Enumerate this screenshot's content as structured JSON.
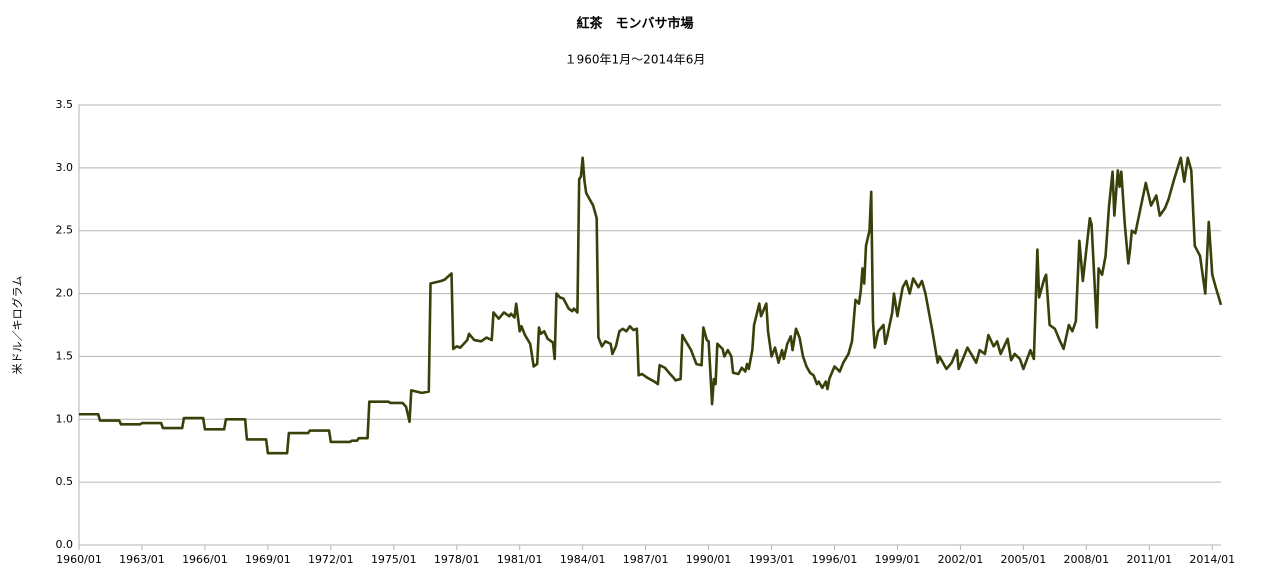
{
  "chart_data": {
    "type": "line",
    "title": "紅茶　モンバサ市場",
    "subtitle": "１960年1月～2014年6月",
    "ylabel": "米ドル／キログラム",
    "color": "#3b400b",
    "grid": true,
    "xlim": [
      "1960/01",
      "2014/06"
    ],
    "xticks": [
      "1960/01",
      "1963/01",
      "1966/01",
      "1969/01",
      "1972/01",
      "1975/01",
      "1978/01",
      "1981/01",
      "1984/01",
      "1987/01",
      "1990/01",
      "1993/01",
      "1996/01",
      "1999/01",
      "2002/01",
      "2005/01",
      "2008/01",
      "2011/01",
      "2014/01"
    ],
    "ylim": [
      0,
      3.5
    ],
    "yticks": [
      {
        "value": 0,
        "label": "0.0"
      },
      0.5,
      {
        "value": 1,
        "label": "1.0"
      },
      1.5,
      {
        "value": 2,
        "label": "2.0"
      },
      2.5,
      {
        "value": 3,
        "label": "3.0"
      },
      3.5
    ],
    "x": [
      "1960/01",
      "1960/12",
      "1961/01",
      "1961/12",
      "1962/01",
      "1962/12",
      "1963/01",
      "1963/12",
      "1964/01",
      "1964/12",
      "1965/01",
      "1965/12",
      "1966/01",
      "1966/12",
      "1967/01",
      "1967/12",
      "1968/01",
      "1968/12",
      "1969/01",
      "1969/12",
      "1970/01",
      "1970/12",
      "1971/01",
      "1971/12",
      "1972/01",
      "1972/12",
      "1973/01",
      "1973/04",
      "1973/05",
      "1973/10",
      "1973/11",
      "1974/10",
      "1974/11",
      "1975/06",
      "1975/08",
      "1975/10",
      "1975/11",
      "1976/05",
      "1976/09",
      "1976/10",
      "1977/04",
      "1977/06",
      "1977/10",
      "1977/11",
      "1978/01",
      "1978/03",
      "1978/07",
      "1978/08",
      "1978/11",
      "1979/03",
      "1979/06",
      "1979/09",
      "1979/10",
      "1980/01",
      "1980/04",
      "1980/07",
      "1980/08",
      "1980/10",
      "1980/11",
      "1981/01",
      "1981/02",
      "1981/04",
      "1981/07",
      "1981/09",
      "1981/11",
      "1981/12",
      "1982/01",
      "1982/03",
      "1982/05",
      "1982/08",
      "1982/09",
      "1982/10",
      "1982/12",
      "1983/02",
      "1983/05",
      "1983/07",
      "1983/08",
      "1983/10",
      "1983/11",
      "1983/12",
      "1984/01",
      "1984/02",
      "1984/03",
      "1984/05",
      "1984/07",
      "1984/09",
      "1984/10",
      "1984/12",
      "1985/02",
      "1985/05",
      "1985/06",
      "1985/08",
      "1985/10",
      "1985/12",
      "1986/02",
      "1986/04",
      "1986/06",
      "1986/08",
      "1986/09",
      "1986/11",
      "1987/02",
      "1987/06",
      "1987/08",
      "1987/09",
      "1987/12",
      "1988/03",
      "1988/05",
      "1988/06",
      "1988/09",
      "1988/10",
      "1988/12",
      "1989/03",
      "1989/06",
      "1989/09",
      "1989/10",
      "1989/12",
      "1990/01",
      "1990/02",
      "1990/03",
      "1990/04",
      "1990/05",
      "1990/06",
      "1990/09",
      "1990/10",
      "1990/12",
      "1991/02",
      "1991/03",
      "1991/06",
      "1991/08",
      "1991/10",
      "1991/11",
      "1991/12",
      "1992/02",
      "1992/03",
      "1992/06",
      "1992/07",
      "1992/10",
      "1992/11",
      "1993/01",
      "1993/03",
      "1993/05",
      "1993/07",
      "1993/08",
      "1993/10",
      "1993/12",
      "1994/01",
      "1994/03",
      "1994/05",
      "1994/07",
      "1994/09",
      "1994/11",
      "1995/01",
      "1995/03",
      "1995/04",
      "1995/06",
      "1995/08",
      "1995/09",
      "1995/10",
      "1996/01",
      "1996/04",
      "1996/06",
      "1996/09",
      "1996/11",
      "1997/01",
      "1997/03",
      "1997/04",
      "1997/05",
      "1997/06",
      "1997/07",
      "1997/09",
      "1997/10",
      "1997/11",
      "1997/12",
      "1998/02",
      "1998/05",
      "1998/06",
      "1998/07",
      "1998/10",
      "1998/11",
      "1999/01",
      "1999/02",
      "1999/04",
      "1999/06",
      "1999/08",
      "1999/10",
      "2000/01",
      "2000/03",
      "2000/05",
      "2000/09",
      "2000/12",
      "2001/01",
      "2001/05",
      "2001/08",
      "2001/11",
      "2001/12",
      "2002/03",
      "2002/05",
      "2002/08",
      "2002/10",
      "2002/12",
      "2003/03",
      "2003/05",
      "2003/08",
      "2003/10",
      "2003/12",
      "2004/04",
      "2004/06",
      "2004/08",
      "2004/11",
      "2005/01",
      "2005/05",
      "2005/07",
      "2005/09",
      "2005/10",
      "2006/01",
      "2006/02",
      "2006/04",
      "2006/07",
      "2006/10",
      "2006/12",
      "2007/03",
      "2007/05",
      "2007/07",
      "2007/09",
      "2007/11",
      "2008/01",
      "2008/03",
      "2008/04",
      "2008/07",
      "2008/08",
      "2008/10",
      "2008/12",
      "2009/02",
      "2009/04",
      "2009/05",
      "2009/07",
      "2009/08",
      "2009/09",
      "2009/11",
      "2010/01",
      "2010/02",
      "2010/03",
      "2010/05",
      "2010/11",
      "2011/02",
      "2011/05",
      "2011/07",
      "2011/10",
      "2011/12",
      "2012/03",
      "2012/07",
      "2012/09",
      "2012/11",
      "2013/01",
      "2013/03",
      "2013/06",
      "2013/09",
      "2013/11",
      "2014/01",
      "2014/03",
      "2014/06"
    ],
    "values": [
      1.04,
      1.04,
      0.99,
      0.99,
      0.96,
      0.96,
      0.97,
      0.97,
      0.93,
      0.93,
      1.01,
      1.01,
      0.92,
      0.92,
      1.0,
      1.0,
      0.84,
      0.84,
      0.73,
      0.73,
      0.89,
      0.89,
      0.91,
      0.91,
      0.82,
      0.82,
      0.83,
      0.83,
      0.85,
      0.85,
      1.14,
      1.14,
      1.13,
      1.13,
      1.1,
      0.98,
      1.23,
      1.21,
      1.22,
      2.08,
      2.1,
      2.11,
      2.16,
      1.56,
      1.58,
      1.57,
      1.63,
      1.68,
      1.63,
      1.62,
      1.65,
      1.63,
      1.85,
      1.8,
      1.85,
      1.82,
      1.84,
      1.81,
      1.92,
      1.7,
      1.74,
      1.67,
      1.6,
      1.42,
      1.44,
      1.73,
      1.68,
      1.7,
      1.64,
      1.61,
      1.48,
      2.0,
      1.97,
      1.96,
      1.88,
      1.86,
      1.88,
      1.85,
      2.91,
      2.93,
      3.08,
      2.9,
      2.8,
      2.75,
      2.7,
      2.6,
      1.65,
      1.58,
      1.62,
      1.6,
      1.52,
      1.58,
      1.7,
      1.72,
      1.7,
      1.74,
      1.71,
      1.72,
      1.35,
      1.36,
      1.33,
      1.3,
      1.28,
      1.43,
      1.41,
      1.36,
      1.33,
      1.31,
      1.32,
      1.67,
      1.62,
      1.55,
      1.44,
      1.43,
      1.73,
      1.63,
      1.62,
      1.38,
      1.12,
      1.32,
      1.28,
      1.6,
      1.56,
      1.5,
      1.55,
      1.5,
      1.37,
      1.36,
      1.41,
      1.38,
      1.44,
      1.4,
      1.55,
      1.75,
      1.92,
      1.82,
      1.92,
      1.7,
      1.5,
      1.57,
      1.45,
      1.55,
      1.48,
      1.6,
      1.66,
      1.55,
      1.72,
      1.65,
      1.5,
      1.42,
      1.37,
      1.35,
      1.28,
      1.3,
      1.25,
      1.3,
      1.24,
      1.32,
      1.42,
      1.38,
      1.45,
      1.52,
      1.62,
      1.95,
      1.92,
      2.02,
      2.2,
      2.08,
      2.38,
      2.5,
      2.81,
      1.78,
      1.57,
      1.7,
      1.75,
      1.6,
      1.65,
      1.85,
      2.0,
      1.82,
      1.9,
      2.05,
      2.1,
      2.0,
      2.12,
      2.05,
      2.1,
      2.0,
      1.7,
      1.45,
      1.5,
      1.4,
      1.45,
      1.55,
      1.4,
      1.5,
      1.57,
      1.5,
      1.45,
      1.55,
      1.52,
      1.67,
      1.58,
      1.62,
      1.52,
      1.64,
      1.47,
      1.52,
      1.48,
      1.4,
      1.55,
      1.48,
      2.35,
      1.97,
      2.12,
      2.15,
      1.75,
      1.72,
      1.62,
      1.56,
      1.75,
      1.7,
      1.78,
      2.42,
      2.1,
      2.35,
      2.6,
      2.55,
      1.73,
      2.2,
      2.15,
      2.3,
      2.7,
      2.97,
      2.62,
      2.98,
      2.85,
      2.97,
      2.55,
      2.24,
      2.35,
      2.5,
      2.48,
      2.88,
      2.7,
      2.78,
      2.62,
      2.68,
      2.75,
      2.9,
      3.08,
      2.89,
      3.08,
      2.98,
      2.38,
      2.3,
      2.0,
      2.57,
      2.15,
      2.05,
      1.91
    ]
  }
}
